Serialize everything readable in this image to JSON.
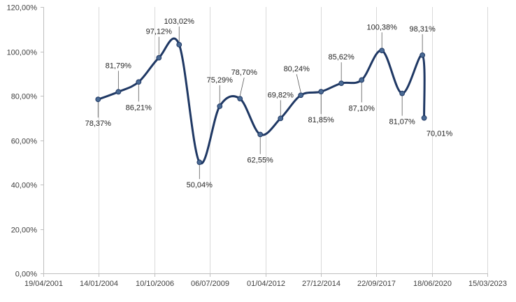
{
  "chart_data": {
    "type": "line",
    "title": "",
    "xlabel": "",
    "ylabel": "",
    "ylim": [
      0,
      120
    ],
    "y_ticks": [
      "0,00%",
      "20,00%",
      "40,00%",
      "60,00%",
      "80,00%",
      "100,00%",
      "120,00%"
    ],
    "y_tick_values": [
      0,
      20,
      40,
      60,
      80,
      100,
      120
    ],
    "x_axis_type": "date",
    "xlim": [
      "2001-04-19",
      "2023-03-15"
    ],
    "x_ticks": [
      "19/04/2001",
      "14/01/2004",
      "10/10/2006",
      "06/07/2009",
      "01/04/2012",
      "27/12/2014",
      "22/09/2017",
      "18/06/2020",
      "15/03/2023"
    ],
    "x_tick_dates": [
      "2001-04-19",
      "2004-01-14",
      "2006-10-10",
      "2009-07-06",
      "2012-04-01",
      "2014-12-27",
      "2017-09-22",
      "2020-06-18",
      "2023-03-15"
    ],
    "grid": {
      "vertical": true,
      "horizontal": false
    },
    "line_color": "#1f3864",
    "marker_fill": "#4a6a94",
    "series": [
      {
        "points": [
          {
            "x": "2003-12-31",
            "y": 78.37,
            "label": "78,37%"
          },
          {
            "x": "2004-12-31",
            "y": 81.79,
            "label": "81,79%"
          },
          {
            "x": "2005-12-31",
            "y": 86.21,
            "label": "86,21%"
          },
          {
            "x": "2006-12-31",
            "y": 97.12,
            "label": "97,12%"
          },
          {
            "x": "2007-12-31",
            "y": 103.02,
            "label": "103,02%"
          },
          {
            "x": "2008-12-31",
            "y": 50.04,
            "label": "50,04%"
          },
          {
            "x": "2009-12-31",
            "y": 75.29,
            "label": "75,29%"
          },
          {
            "x": "2010-12-31",
            "y": 78.7,
            "label": "78,70%"
          },
          {
            "x": "2011-12-31",
            "y": 62.55,
            "label": "62,55%"
          },
          {
            "x": "2012-12-31",
            "y": 69.82,
            "label": "69,82%"
          },
          {
            "x": "2013-12-31",
            "y": 80.24,
            "label": "80,24%"
          },
          {
            "x": "2014-12-31",
            "y": 81.85,
            "label": "81,85%"
          },
          {
            "x": "2015-12-31",
            "y": 85.62,
            "label": "85,62%"
          },
          {
            "x": "2016-12-31",
            "y": 87.1,
            "label": "87,10%"
          },
          {
            "x": "2017-12-31",
            "y": 100.38,
            "label": "100,38%"
          },
          {
            "x": "2018-12-31",
            "y": 81.07,
            "label": "81,07%"
          },
          {
            "x": "2019-12-31",
            "y": 98.31,
            "label": "98,31%"
          },
          {
            "x": "2020-01-31",
            "y": 70.01,
            "label": "70,01%"
          }
        ]
      }
    ]
  }
}
